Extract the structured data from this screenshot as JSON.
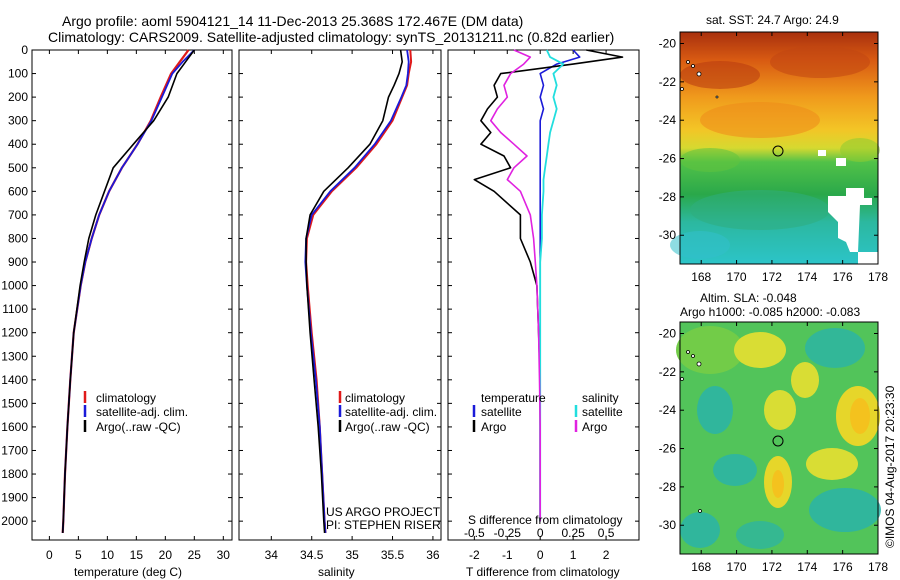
{
  "titles": {
    "line1": "Argo profile: aoml 5904121_14 11-Dec-2013 25.368S 172.467E (DM data)",
    "line2": "Climatology: CARS2009. Satellite-adjusted climatology: synTS_20131211.nc (0.82d earlier)"
  },
  "sst_title": "sat. SST: 24.7 Argo: 24.9",
  "sla_title_1": "Altim. SLA: -0.048",
  "sla_title_2": "Argo h1000: -0.085 h2000: -0.083",
  "watermark": "©IMOS 04-Aug-2017 20:23:30",
  "project_line1": "US ARGO PROJECT",
  "project_line2": "PI: STEPHEN RISER",
  "colors": {
    "climatology": "#e01a1a",
    "satellite": "#1a1ad8",
    "argo": "#000000",
    "satellite_s": "#22dede",
    "argo_s": "#e022e0"
  },
  "chart_data": [
    {
      "type": "line",
      "id": "temperature",
      "xlabel": "temperature (deg C)",
      "ylabel": "",
      "xlim": [
        -3,
        31.5
      ],
      "ylim": [
        2080,
        0
      ],
      "xticks": [
        0,
        5,
        10,
        15,
        20,
        25,
        30
      ],
      "yticks": [
        0,
        100,
        200,
        300,
        400,
        500,
        600,
        700,
        800,
        900,
        1000,
        1100,
        1200,
        1300,
        1400,
        1500,
        1600,
        1700,
        1800,
        1900,
        2000
      ],
      "y": [
        0,
        50,
        100,
        200,
        300,
        400,
        500,
        600,
        700,
        800,
        900,
        1000,
        1200,
        1400,
        1600,
        1800,
        2000,
        2050
      ],
      "series": [
        {
          "name": "climatology",
          "values": [
            24.0,
            22.5,
            21.0,
            19.2,
            17.5,
            15.2,
            12.5,
            10.3,
            8.6,
            7.3,
            6.2,
            5.4,
            4.2,
            3.6,
            3.1,
            2.7,
            2.4,
            2.3
          ]
        },
        {
          "name": "satellite-adj. clim.",
          "values": [
            25.0,
            23.0,
            21.2,
            19.4,
            17.6,
            15.2,
            12.5,
            10.3,
            8.6,
            7.3,
            6.2,
            5.4,
            4.2,
            3.6,
            3.1,
            2.7,
            2.4,
            2.3
          ]
        },
        {
          "name": "Argo(..raw -QC)",
          "values": [
            25.0,
            23.5,
            22.0,
            20.5,
            18.0,
            14.5,
            11.0,
            9.5,
            8.0,
            6.8,
            6.0,
            5.3,
            4.2,
            3.6,
            3.1,
            2.7,
            2.4,
            2.3
          ]
        }
      ],
      "legend": [
        "climatology",
        "satellite-adj. clim.",
        "Argo(..raw -QC)"
      ]
    },
    {
      "type": "line",
      "id": "salinity",
      "xlabel": "salinity",
      "ylabel": "",
      "xlim": [
        33.6,
        36.1
      ],
      "ylim": [
        2080,
        0
      ],
      "xticks": [
        34,
        34.5,
        35,
        35.5,
        36
      ],
      "yticks": [
        0,
        100,
        200,
        300,
        400,
        500,
        600,
        700,
        800,
        900,
        1000,
        1100,
        1200,
        1300,
        1400,
        1500,
        1600,
        1700,
        1800,
        1900,
        2000
      ],
      "y": [
        0,
        50,
        100,
        150,
        200,
        300,
        400,
        500,
        600,
        700,
        800,
        900,
        1000,
        1200,
        1400,
        1600,
        1800,
        2000,
        2050
      ],
      "series": [
        {
          "name": "climatology",
          "values": [
            35.72,
            35.73,
            35.7,
            35.68,
            35.62,
            35.5,
            35.3,
            35.05,
            34.75,
            34.52,
            34.44,
            34.43,
            34.45,
            34.5,
            34.56,
            34.6,
            34.63,
            34.66,
            34.67
          ]
        },
        {
          "name": "satellite-adj. clim.",
          "values": [
            35.68,
            35.7,
            35.69,
            35.67,
            35.61,
            35.48,
            35.28,
            35.03,
            34.73,
            34.5,
            34.43,
            34.42,
            34.44,
            34.49,
            34.55,
            34.6,
            34.63,
            34.66,
            34.67
          ]
        },
        {
          "name": "Argo(..raw -QC)",
          "values": [
            35.6,
            35.62,
            35.58,
            35.52,
            35.45,
            35.38,
            35.22,
            34.95,
            34.65,
            34.48,
            34.43,
            34.43,
            34.44,
            34.48,
            34.53,
            34.58,
            34.62,
            34.65,
            34.66
          ]
        }
      ],
      "legend": [
        "climatology",
        "satellite-adj. clim.",
        "Argo(..raw -QC)"
      ]
    },
    {
      "type": "line",
      "id": "difference",
      "xlabel": "T difference from climatology",
      "xlabel_top": "S difference from climatology",
      "xlim": [
        -2.8,
        3.0
      ],
      "ylim": [
        2080,
        0
      ],
      "xticks": [
        -2,
        -1,
        0,
        1,
        2
      ],
      "s_tick_labels": [
        "-0.5",
        "-0.25",
        "0",
        "0.25",
        "0.5"
      ],
      "s_tick_positions": [
        -2,
        -1,
        0,
        1,
        2
      ],
      "yticks": [
        0,
        100,
        200,
        300,
        400,
        500,
        600,
        700,
        800,
        900,
        1000,
        1100,
        1200,
        1300,
        1400,
        1500,
        1600,
        1700,
        1800,
        1900,
        2000
      ],
      "y": [
        0,
        30,
        60,
        100,
        150,
        200,
        250,
        300,
        350,
        400,
        450,
        500,
        550,
        600,
        700,
        800,
        900,
        1000,
        1200,
        1400,
        1600,
        1800,
        2000
      ],
      "series": [
        {
          "name": "temperature satellite",
          "values": [
            1.0,
            1.2,
            0.5,
            0.0,
            0.1,
            0.0,
            0.1,
            0.0,
            0.0,
            0.0,
            0.0,
            0.0,
            0.0,
            0.0,
            0.0,
            0.0,
            0.0,
            0.0,
            0.0,
            0.0,
            0.0,
            0.0,
            0.0
          ]
        },
        {
          "name": "temperature Argo",
          "values": [
            1.4,
            2.5,
            1.0,
            -1.2,
            -1.4,
            -1.3,
            -1.6,
            -1.8,
            -1.5,
            -1.8,
            -1.1,
            -0.9,
            -2.0,
            -1.4,
            -0.6,
            -0.6,
            -0.3,
            -0.1,
            -0.05,
            0.0,
            0.0,
            0.0,
            0.0
          ]
        },
        {
          "name": "salinity satellite",
          "values": [
            0.2,
            0.3,
            0.7,
            0.4,
            0.5,
            0.4,
            0.5,
            0.4,
            0.3,
            0.25,
            0.2,
            0.15,
            0.1,
            0.1,
            0.05,
            0.05,
            0.0,
            0.0,
            0.0,
            0.0,
            0.0,
            0.0,
            0.0
          ]
        },
        {
          "name": "salinity Argo",
          "values": [
            -0.8,
            -0.3,
            -0.5,
            -0.9,
            -1.1,
            -1.0,
            -1.3,
            -1.5,
            -1.2,
            -0.8,
            -0.4,
            -0.8,
            -1.0,
            -0.6,
            -0.3,
            -0.2,
            -0.15,
            -0.1,
            -0.05,
            -0.02,
            0.0,
            0.0,
            0.0
          ]
        }
      ],
      "legend_temperature_title": "temperature",
      "legend_salinity_title": "salinity",
      "legend_temperature": [
        "satellite",
        "Argo"
      ],
      "legend_salinity": [
        "satellite",
        "Argo"
      ]
    },
    {
      "type": "heatmap",
      "id": "sst-map",
      "title": "sat. SST: 24.7 Argo: 24.9",
      "xlim": [
        166.8,
        178
      ],
      "ylim": [
        -31.5,
        -19.4
      ],
      "xticks": [
        168,
        170,
        172,
        174,
        176,
        178
      ],
      "yticks": [
        -20,
        -22,
        -24,
        -26,
        -28,
        -30
      ],
      "argo_position": [
        172.47,
        -25.37
      ]
    },
    {
      "type": "heatmap",
      "id": "sla-map",
      "title": "Altim. SLA: -0.048",
      "subtitle": "Argo h1000: -0.085 h2000: -0.083",
      "xlim": [
        166.8,
        178
      ],
      "ylim": [
        -31.5,
        -19.4
      ],
      "xticks": [
        168,
        170,
        172,
        174,
        176,
        178
      ],
      "yticks": [
        -20,
        -22,
        -24,
        -26,
        -28,
        -30
      ],
      "argo_position": [
        172.47,
        -25.37
      ]
    }
  ]
}
